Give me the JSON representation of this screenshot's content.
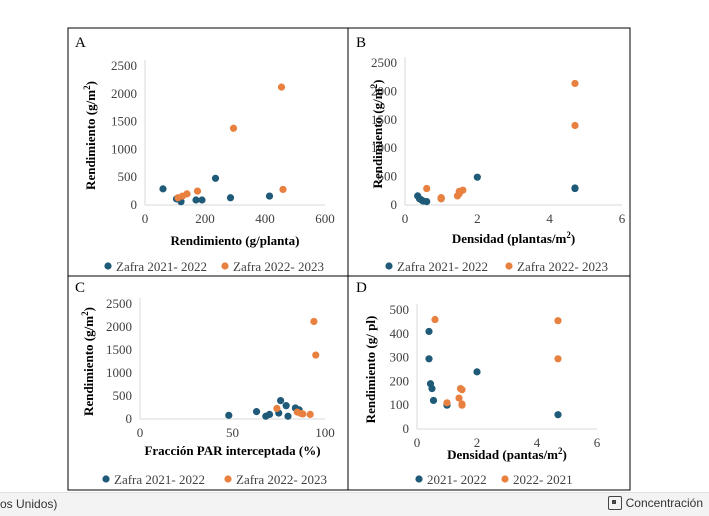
{
  "colors": {
    "series1": "#1f5a78",
    "series2": "#e8803f",
    "axis": "#d9d9d9",
    "frame": "#000000"
  },
  "status": {
    "left": "os Unidos)",
    "right": "Concentración",
    "icon": "focus-mode-icon"
  },
  "chart_data": [
    {
      "type": "scatter",
      "panel": "A",
      "xlabel": "Rendimiento (g/planta)",
      "ylabel": "Rendimiento (g/m²)",
      "xlim": [
        0,
        600
      ],
      "ylim": [
        0,
        2500
      ],
      "xticks": [
        0,
        200,
        400,
        600
      ],
      "yticks": [
        0,
        500,
        1000,
        1500,
        2000,
        2500
      ],
      "series": [
        {
          "name": "Zafra 2021- 2022",
          "points": [
            [
              60,
              290
            ],
            [
              105,
              110
            ],
            [
              120,
              60
            ],
            [
              170,
              90
            ],
            [
              190,
              90
            ],
            [
              235,
              480
            ],
            [
              285,
              130
            ],
            [
              415,
              160
            ]
          ]
        },
        {
          "name": "Zafra 2022- 2023",
          "points": [
            [
              110,
              130
            ],
            [
              125,
              160
            ],
            [
              140,
              200
            ],
            [
              175,
              250
            ],
            [
              295,
              1380
            ],
            [
              455,
              2120
            ],
            [
              460,
              280
            ]
          ]
        }
      ]
    },
    {
      "type": "scatter",
      "panel": "B",
      "xlabel": "Densidad (plantas/m²)",
      "ylabel": "Rendimiento (g/m²)",
      "xlim": [
        0,
        6
      ],
      "ylim": [
        0,
        2500
      ],
      "xticks": [
        0,
        2,
        4,
        6
      ],
      "yticks": [
        0,
        500,
        1000,
        1500,
        2000,
        2500
      ],
      "series": [
        {
          "name": "Zafra 2021- 2022",
          "points": [
            [
              0.35,
              160
            ],
            [
              0.4,
              110
            ],
            [
              0.45,
              90
            ],
            [
              0.5,
              70
            ],
            [
              0.6,
              60
            ],
            [
              1.0,
              110
            ],
            [
              2.0,
              490
            ],
            [
              4.7,
              300
            ],
            [
              4.7,
              290
            ]
          ]
        },
        {
          "name": "Zafra 2022- 2023",
          "points": [
            [
              0.6,
              290
            ],
            [
              1.0,
              110
            ],
            [
              1.0,
              130
            ],
            [
              1.45,
              160
            ],
            [
              1.5,
              200
            ],
            [
              1.5,
              240
            ],
            [
              1.6,
              260
            ],
            [
              4.7,
              1400
            ],
            [
              4.7,
              2140
            ]
          ]
        }
      ]
    },
    {
      "type": "scatter",
      "panel": "C",
      "xlabel": "Fracción PAR interceptada (%)",
      "ylabel": "Rendimiento (g/m²)",
      "xlim": [
        0,
        100
      ],
      "ylim": [
        0,
        2500
      ],
      "xticks": [
        0,
        50,
        100
      ],
      "yticks": [
        0,
        500,
        1000,
        1500,
        2000,
        2500
      ],
      "series": [
        {
          "name": "Zafra 2021- 2022",
          "points": [
            [
              48,
              80
            ],
            [
              63,
              160
            ],
            [
              68,
              60
            ],
            [
              70,
              100
            ],
            [
              75,
              130
            ],
            [
              76,
              400
            ],
            [
              79,
              290
            ],
            [
              80,
              60
            ],
            [
              84,
              240
            ],
            [
              86,
              200
            ]
          ]
        },
        {
          "name": "Zafra 2022- 2023",
          "points": [
            [
              74,
              230
            ],
            [
              85,
              150
            ],
            [
              87,
              120
            ],
            [
              88,
              110
            ],
            [
              92,
              100
            ],
            [
              94,
              2120
            ],
            [
              95,
              1390
            ]
          ]
        }
      ]
    },
    {
      "type": "scatter",
      "panel": "D",
      "xlabel": "Densidad (pantas/m²)",
      "ylabel": "Rendimiento (g/ pl)",
      "xlim": [
        0,
        6
      ],
      "ylim": [
        0,
        500
      ],
      "xticks": [
        0,
        2,
        4,
        6
      ],
      "yticks": [
        0,
        100,
        200,
        300,
        400,
        500
      ],
      "series": [
        {
          "name": "2021- 2022",
          "points": [
            [
              0.4,
              410
            ],
            [
              0.4,
              295
            ],
            [
              0.45,
              190
            ],
            [
              0.5,
              170
            ],
            [
              0.55,
              120
            ],
            [
              1.0,
              100
            ],
            [
              2.0,
              240
            ],
            [
              4.7,
              60
            ]
          ]
        },
        {
          "name": "2022- 2021",
          "points": [
            [
              0.6,
              460
            ],
            [
              1.0,
              110
            ],
            [
              1.4,
              130
            ],
            [
              1.45,
              170
            ],
            [
              1.5,
              165
            ],
            [
              1.5,
              105
            ],
            [
              1.5,
              100
            ],
            [
              4.7,
              455
            ],
            [
              4.7,
              295
            ]
          ]
        }
      ]
    }
  ]
}
